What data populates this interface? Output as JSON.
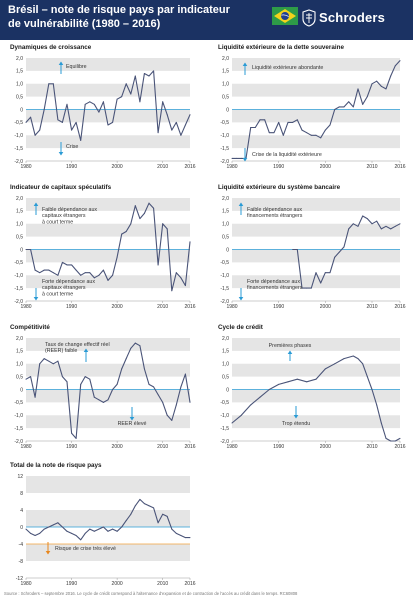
{
  "header": {
    "title_line1": "Brésil – note de risque pays par indicateur",
    "title_line2": "de vulnérabilité (1980 – 2016)",
    "brand": "Schroders"
  },
  "colors": {
    "header_bg": "#1b3263",
    "line": "#4a5478",
    "band": "#e5e5e5",
    "zero_line": "#2a9bd5",
    "danger_line": "#f0a23c",
    "arrow_blue": "#2a9bd5",
    "arrow_orange": "#e8871e"
  },
  "footer": {
    "source": "Source : Schroders – septembre 2016. Le cycle de crédit correspond à l'alternance d'expansion et de contraction de l'accès au crédit dans le temps. RC60808"
  },
  "chart_data": [
    {
      "type": "line",
      "title": "Dynamiques de croissance",
      "x": [
        1980,
        1981,
        1982,
        1983,
        1984,
        1985,
        1986,
        1987,
        1988,
        1989,
        1990,
        1991,
        1992,
        1993,
        1994,
        1995,
        1996,
        1997,
        1998,
        1999,
        2000,
        2001,
        2002,
        2003,
        2004,
        2005,
        2006,
        2007,
        2008,
        2009,
        2010,
        2011,
        2012,
        2013,
        2014,
        2015,
        2016
      ],
      "values": [
        -0.5,
        -0.3,
        -1.0,
        -0.8,
        0.0,
        1.0,
        1.0,
        -0.4,
        -0.5,
        0.2,
        -0.8,
        -0.5,
        -1.2,
        0.2,
        0.3,
        0.2,
        -0.1,
        0.3,
        -0.6,
        -0.5,
        0.4,
        0.5,
        1.0,
        0.6,
        1.3,
        0.3,
        1.4,
        1.3,
        1.5,
        -0.9,
        0.3,
        -0.2,
        -0.8,
        -0.5,
        -1.0,
        -0.6,
        -0.2
      ],
      "xlim": [
        1980,
        2016
      ],
      "ylim": [
        -2,
        2
      ],
      "yticks": [
        -2,
        -1.5,
        -1,
        -0.5,
        0,
        0.5,
        1,
        1.5,
        2
      ],
      "ytick_labels": [
        "-2,0",
        "-1,5",
        "-1,0",
        "-0,5",
        "0",
        "0,5",
        "1,0",
        "1,5",
        "2,0"
      ],
      "xticks": [
        1980,
        1990,
        2000,
        2010,
        2016
      ],
      "annotations": [
        {
          "text": "Equilibre",
          "direction": "up",
          "x": 1986
        },
        {
          "text": "Crise",
          "direction": "down",
          "x": 1986
        }
      ]
    },
    {
      "type": "line",
      "title": "Liquidité extérieure de la dette souveraine",
      "x": [
        1980,
        1981,
        1982,
        1983,
        1984,
        1985,
        1986,
        1987,
        1988,
        1989,
        1990,
        1991,
        1992,
        1993,
        1994,
        1995,
        1996,
        1997,
        1998,
        1999,
        2000,
        2001,
        2002,
        2003,
        2004,
        2005,
        2006,
        2007,
        2008,
        2009,
        2010,
        2011,
        2012,
        2013,
        2014,
        2015,
        2016
      ],
      "values": [
        -1.9,
        -1.9,
        -1.9,
        -1.9,
        -0.7,
        -0.7,
        -0.4,
        -0.4,
        -0.9,
        -0.9,
        -0.5,
        -1.0,
        -0.5,
        -0.5,
        -0.4,
        -0.8,
        -0.9,
        -1.0,
        -1.0,
        -1.1,
        -0.8,
        -0.6,
        0.0,
        0.1,
        0.1,
        0.3,
        0.1,
        0.8,
        0.2,
        0.5,
        1.0,
        1.1,
        0.9,
        0.8,
        1.3,
        1.7,
        1.9
      ],
      "xlim": [
        1980,
        2016
      ],
      "ylim": [
        -2,
        2
      ],
      "yticks": [
        -2,
        -1.5,
        -1,
        -0.5,
        0,
        0.5,
        1,
        1.5,
        2
      ],
      "ytick_labels": [
        "-2,0",
        "-1,5",
        "-1,0",
        "-0,5",
        "0",
        "0,5",
        "1,0",
        "1,5",
        "2,0"
      ],
      "xticks": [
        1980,
        1990,
        2000,
        2010,
        2016
      ],
      "annotations": [
        {
          "text": "Liquidité extérieure abondante",
          "direction": "up",
          "x": 1983
        },
        {
          "text": "Crise de la liquidité extérieure",
          "direction": "down",
          "x": 1983
        }
      ]
    },
    {
      "type": "line",
      "title": "Indicateur de capitaux spéculatifs",
      "x": [
        1980,
        1981,
        1982,
        1983,
        1984,
        1985,
        1986,
        1987,
        1988,
        1989,
        1990,
        1991,
        1992,
        1993,
        1994,
        1995,
        1996,
        1997,
        1998,
        1999,
        2000,
        2001,
        2002,
        2003,
        2004,
        2005,
        2006,
        2007,
        2008,
        2009,
        2010,
        2011,
        2012,
        2013,
        2014,
        2015,
        2016
      ],
      "values": [
        0.0,
        0.0,
        -0.8,
        -0.9,
        -0.8,
        -0.8,
        -0.9,
        -1.0,
        -0.5,
        -0.6,
        -0.6,
        -0.8,
        -1.0,
        -0.9,
        -0.9,
        -1.1,
        -1.0,
        -0.8,
        -1.2,
        -1.0,
        -0.3,
        0.6,
        0.7,
        1.0,
        1.7,
        1.2,
        1.4,
        1.8,
        1.6,
        -0.6,
        1.0,
        0.8,
        -1.6,
        -0.9,
        -1.1,
        -1.4,
        0.3
      ],
      "xlim": [
        1980,
        2016
      ],
      "ylim": [
        -2,
        2
      ],
      "yticks": [
        -2,
        -1.5,
        -1,
        -0.5,
        0,
        0.5,
        1,
        1.5,
        2
      ],
      "ytick_labels": [
        "-2,0",
        "-1,5",
        "-1,0",
        "-0,5",
        "0",
        "0,5",
        "1,0",
        "1,5",
        "2,0"
      ],
      "xticks": [
        1980,
        1990,
        2000,
        2010,
        2016
      ],
      "annotations": [
        {
          "text": "Faible dépendance aux capitaux étrangers à court terme",
          "lines": [
            "Faible dépendance aux",
            "capitaux étrangers",
            "à court terme"
          ],
          "direction": "up",
          "x": 1983
        },
        {
          "text": "Forte dépendance aux capitaux étrangers à court terme",
          "lines": [
            "Forte dépendance aux",
            "capitaux étrangers",
            "à court terme"
          ],
          "direction": "down",
          "x": 1983
        }
      ]
    },
    {
      "type": "line",
      "title": "Liquidité extérieure du système bancaire",
      "x": [
        1993,
        1994,
        1995,
        1996,
        1997,
        1998,
        1999,
        2000,
        2001,
        2002,
        2003,
        2004,
        2005,
        2006,
        2007,
        2008,
        2009,
        2010,
        2011,
        2012,
        2013,
        2014,
        2015,
        2016
      ],
      "values": [
        0.0,
        0.0,
        -1.5,
        -1.5,
        -1.5,
        -0.9,
        -1.3,
        -0.9,
        -0.9,
        -0.3,
        -0.1,
        0.1,
        0.8,
        1.0,
        0.9,
        1.3,
        1.2,
        1.0,
        1.1,
        0.8,
        0.9,
        0.8,
        0.9,
        1.0
      ],
      "xlim": [
        1980,
        2016
      ],
      "ylim": [
        -2,
        2
      ],
      "yticks": [
        -2,
        -1.5,
        -1,
        -0.5,
        0,
        0.5,
        1,
        1.5,
        2
      ],
      "ytick_labels": [
        "-2,0",
        "-1,5",
        "-1,0",
        "-0,5",
        "0",
        "0,5",
        "1,0",
        "1,5",
        "2,0"
      ],
      "xticks": [
        1980,
        1990,
        2000,
        2010,
        2016
      ],
      "annotations": [
        {
          "text": "Faible dépendance aux financements étrangers",
          "lines": [
            "Faible dépendance aux",
            "financements étrangers"
          ],
          "direction": "up",
          "x": 1983
        },
        {
          "text": "Forte dépendance aux financements étrangers",
          "lines": [
            "Forte dépendance aux",
            "financements étrangers"
          ],
          "direction": "down",
          "x": 1983
        }
      ]
    },
    {
      "type": "line",
      "title": "Compétitivité",
      "x": [
        1980,
        1981,
        1982,
        1983,
        1984,
        1985,
        1986,
        1987,
        1988,
        1989,
        1990,
        1991,
        1992,
        1993,
        1994,
        1995,
        1996,
        1997,
        1998,
        1999,
        2000,
        2001,
        2002,
        2003,
        2004,
        2005,
        2006,
        2007,
        2008,
        2009,
        2010,
        2011,
        2012,
        2013,
        2014,
        2015,
        2016
      ],
      "values": [
        0.4,
        0.5,
        -0.3,
        1.0,
        1.2,
        1.1,
        1.0,
        1.1,
        0.5,
        0.3,
        -1.7,
        -1.9,
        0.2,
        0.5,
        0.4,
        -0.3,
        -0.4,
        -0.5,
        -0.4,
        0.0,
        0.2,
        0.8,
        1.2,
        1.6,
        1.8,
        1.7,
        0.8,
        0.2,
        0.1,
        -0.2,
        -0.5,
        -1.0,
        -1.2,
        -0.6,
        0.1,
        0.6,
        -0.5
      ],
      "xlim": [
        1980,
        2016
      ],
      "ylim": [
        -2,
        2
      ],
      "yticks": [
        -2,
        -1.5,
        -1,
        -0.5,
        0,
        0.5,
        1,
        1.5,
        2
      ],
      "ytick_labels": [
        "-2,0",
        "-1,5",
        "-1,0",
        "-0,5",
        "0",
        "0,5",
        "1,0",
        "1,5",
        "2,0"
      ],
      "xticks": [
        1980,
        1990,
        2000,
        2010,
        2016
      ],
      "annotations": [
        {
          "text": "Taux de change effectif réel (REER) faible",
          "lines": [
            "Taux de change effectif réel",
            "(REER) faible"
          ],
          "direction": "up",
          "x": 1995
        },
        {
          "text": "REER élevé",
          "direction": "down",
          "x": 2004
        }
      ]
    },
    {
      "type": "line",
      "title": "Cycle de crédit",
      "x": [
        1980,
        1982,
        1984,
        1986,
        1988,
        1990,
        1992,
        1994,
        1996,
        1998,
        2000,
        2002,
        2004,
        2006,
        2007,
        2008,
        2009,
        2010,
        2011,
        2012,
        2013,
        2014,
        2015,
        2016
      ],
      "values": [
        -1.3,
        -1.0,
        -0.6,
        -0.3,
        0.0,
        0.2,
        0.3,
        0.4,
        0.3,
        0.4,
        0.8,
        1.0,
        1.2,
        1.3,
        1.2,
        1.0,
        0.5,
        0.0,
        -0.6,
        -1.3,
        -1.9,
        -2.0,
        -2.0,
        -1.9
      ],
      "xlim": [
        1980,
        2016
      ],
      "ylim": [
        -2,
        2
      ],
      "yticks": [
        -2,
        -1.5,
        -1,
        -0.5,
        0,
        0.5,
        1,
        1.5,
        2
      ],
      "ytick_labels": [
        "-2,0",
        "-1,5",
        "-1,0",
        "-0,5",
        "0",
        "0,5",
        "1,0",
        "1,5",
        "2,0"
      ],
      "xticks": [
        1980,
        1990,
        2000,
        2010,
        2016
      ],
      "annotations": [
        {
          "text": "Premières phases",
          "direction": "up",
          "x": 1997
        },
        {
          "text": "Trop étendu",
          "direction": "down",
          "x": 2005
        }
      ]
    },
    {
      "type": "line",
      "title": "Total de la note de risque pays",
      "x": [
        1980,
        1981,
        1982,
        1983,
        1984,
        1985,
        1986,
        1987,
        1988,
        1989,
        1990,
        1991,
        1992,
        1993,
        1994,
        1995,
        1996,
        1997,
        1998,
        1999,
        2000,
        2001,
        2002,
        2003,
        2004,
        2005,
        2006,
        2007,
        2008,
        2009,
        2010,
        2011,
        2012,
        2013,
        2014,
        2015,
        2016
      ],
      "values": [
        -0.5,
        -1.5,
        -2.0,
        -1.5,
        -0.5,
        0.0,
        0.5,
        1.0,
        0.0,
        -1.0,
        -1.5,
        -2.0,
        -3.0,
        -1.5,
        -0.5,
        -1.0,
        -0.5,
        0.0,
        -1.0,
        -0.5,
        -1.0,
        0.0,
        1.5,
        3.0,
        5.0,
        6.5,
        5.5,
        5.0,
        4.5,
        1.0,
        3.0,
        2.5,
        -0.5,
        -1.5,
        -2.0,
        -2.5,
        -2.5
      ],
      "xlim": [
        1980,
        2016
      ],
      "ylim": [
        -12,
        12
      ],
      "yticks": [
        -12,
        -8,
        -4,
        0,
        4,
        8,
        12
      ],
      "ytick_labels": [
        "-12",
        "-8",
        "-4",
        "0",
        "4",
        "8",
        "12"
      ],
      "xticks": [
        1980,
        1990,
        2000,
        2010,
        2016
      ],
      "threshold": -4,
      "annotations": [
        {
          "text": "Risque de crise très élevé",
          "direction": "down",
          "x": 1985
        }
      ]
    }
  ]
}
